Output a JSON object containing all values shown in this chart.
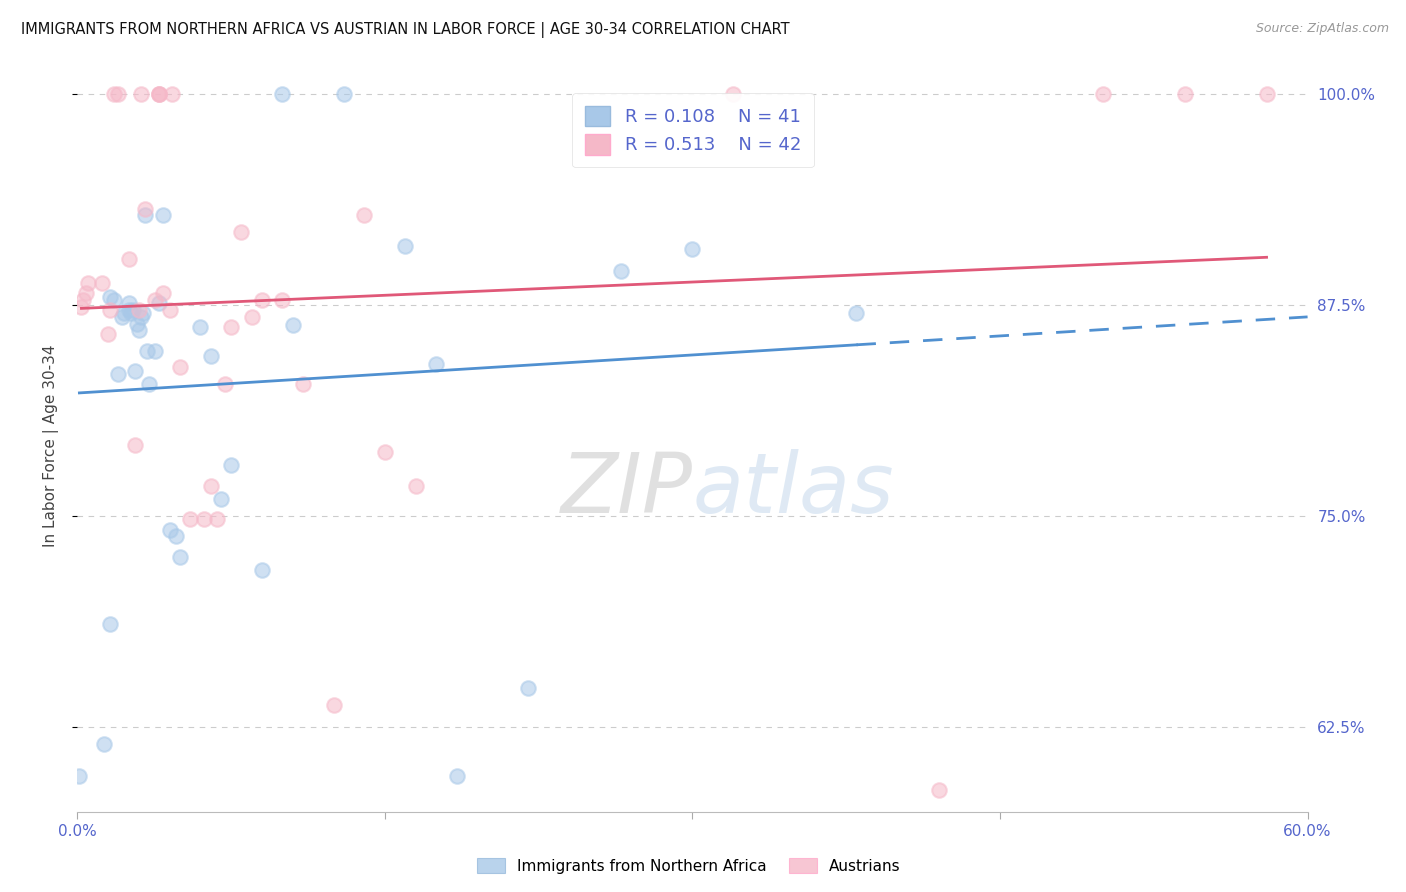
{
  "title": "IMMIGRANTS FROM NORTHERN AFRICA VS AUSTRIAN IN LABOR FORCE | AGE 30-34 CORRELATION CHART",
  "source": "Source: ZipAtlas.com",
  "ylabel": "In Labor Force | Age 30-34",
  "xlim": [
    0.0,
    0.6
  ],
  "ylim": [
    0.575,
    1.008
  ],
  "yticks": [
    0.625,
    0.75,
    0.875,
    1.0
  ],
  "yticklabels": [
    "62.5%",
    "75.0%",
    "87.5%",
    "100.0%"
  ],
  "xticks": [
    0.0,
    0.15,
    0.3,
    0.45,
    0.6
  ],
  "xticklabels": [
    "0.0%",
    "",
    "",
    "",
    "60.0%"
  ],
  "blue_R": "0.108",
  "blue_N": "41",
  "pink_R": "0.513",
  "pink_N": "42",
  "blue_scatter_color": "#a8c8e8",
  "pink_scatter_color": "#f5b8c8",
  "blue_line_color": "#5090d0",
  "pink_line_color": "#e05878",
  "tick_label_color": "#5566cc",
  "ylabel_color": "#444444",
  "title_color": "#111111",
  "source_color": "#999999",
  "grid_color": "#cccccc",
  "watermark_color": "#ddeeff",
  "blue_x": [
    0.001,
    0.013,
    0.016,
    0.016,
    0.018,
    0.02,
    0.022,
    0.023,
    0.025,
    0.025,
    0.026,
    0.027,
    0.028,
    0.029,
    0.03,
    0.031,
    0.032,
    0.033,
    0.034,
    0.035,
    0.038,
    0.04,
    0.042,
    0.045,
    0.048,
    0.05,
    0.06,
    0.065,
    0.07,
    0.075,
    0.09,
    0.1,
    0.13,
    0.16,
    0.175,
    0.185,
    0.22,
    0.265,
    0.3,
    0.38,
    0.105
  ],
  "blue_y": [
    0.596,
    0.615,
    0.686,
    0.88,
    0.878,
    0.834,
    0.868,
    0.87,
    0.872,
    0.876,
    0.87,
    0.872,
    0.836,
    0.864,
    0.86,
    0.868,
    0.87,
    0.928,
    0.848,
    0.828,
    0.848,
    0.876,
    0.928,
    0.742,
    0.738,
    0.726,
    0.862,
    0.845,
    0.76,
    0.78,
    0.718,
    1.0,
    1.0,
    0.91,
    0.84,
    0.596,
    0.648,
    0.895,
    0.908,
    0.87,
    0.863
  ],
  "pink_x": [
    0.002,
    0.003,
    0.004,
    0.005,
    0.012,
    0.015,
    0.016,
    0.018,
    0.02,
    0.025,
    0.028,
    0.03,
    0.031,
    0.033,
    0.038,
    0.04,
    0.04,
    0.04,
    0.042,
    0.045,
    0.046,
    0.05,
    0.055,
    0.062,
    0.065,
    0.068,
    0.072,
    0.075,
    0.08,
    0.085,
    0.09,
    0.1,
    0.11,
    0.125,
    0.14,
    0.15,
    0.165,
    0.32,
    0.42,
    0.5,
    0.54,
    0.58
  ],
  "pink_y": [
    0.874,
    0.878,
    0.882,
    0.888,
    0.888,
    0.858,
    0.872,
    1.0,
    1.0,
    0.902,
    0.792,
    0.872,
    1.0,
    0.932,
    0.878,
    1.0,
    1.0,
    1.0,
    0.882,
    0.872,
    1.0,
    0.838,
    0.748,
    0.748,
    0.768,
    0.748,
    0.828,
    0.862,
    0.918,
    0.868,
    0.878,
    0.878,
    0.828,
    0.638,
    0.928,
    0.788,
    0.768,
    1.0,
    0.588,
    1.0,
    1.0,
    1.0
  ]
}
